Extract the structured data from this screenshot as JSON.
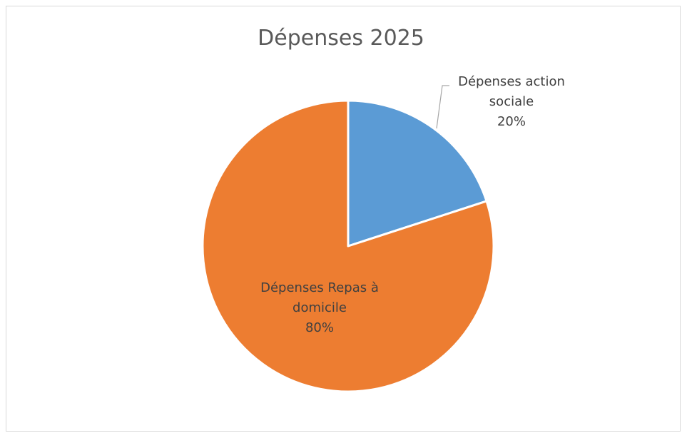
{
  "chart_data": {
    "type": "pie",
    "title": "Dépenses 2025",
    "slices": [
      {
        "label_lines": [
          "Dépenses action",
          "sociale"
        ],
        "percent_label": "20%",
        "value": 20,
        "color": "#5b9bd5"
      },
      {
        "label_lines": [
          "Dépenses Repas à",
          "domicile"
        ],
        "percent_label": "80%",
        "value": 80,
        "color": "#ed7d31"
      }
    ],
    "legend": "none"
  }
}
